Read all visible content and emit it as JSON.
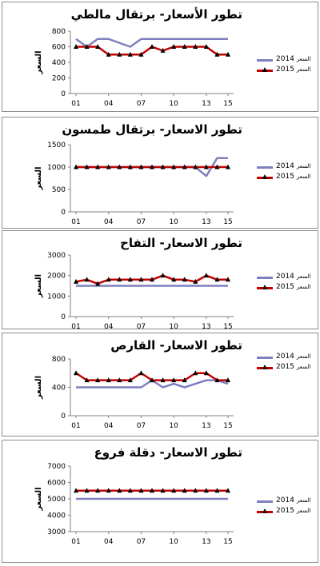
{
  "chart_data": [
    {
      "type": "line",
      "title": "تطور الأسعار- برتقال مالطي",
      "ylabel": "السعر",
      "x": [
        "01",
        "02",
        "03",
        "04",
        "05",
        "06",
        "07",
        "08",
        "09",
        "10",
        "11",
        "12",
        "13",
        "14",
        "15"
      ],
      "xticks": [
        "01",
        "04",
        "07",
        "10",
        "13",
        "15"
      ],
      "ylim": [
        0,
        800
      ],
      "yticks": [
        0,
        200,
        400,
        600,
        800
      ],
      "series": [
        {
          "name": "2014",
          "legend_unit": "السعر",
          "color": "#7f7fbf",
          "marker": "none",
          "values": [
            700,
            600,
            700,
            700,
            650,
            600,
            700,
            700,
            700,
            700,
            700,
            700,
            700,
            700,
            700
          ]
        },
        {
          "name": "2015",
          "legend_unit": "السعر",
          "color": "#c00000",
          "marker": "triangle",
          "values": [
            600,
            600,
            600,
            500,
            500,
            500,
            500,
            600,
            550,
            600,
            600,
            600,
            600,
            500,
            500
          ]
        }
      ]
    },
    {
      "type": "line",
      "title": "تطور الاسعار- برتقال طمسون",
      "ylabel": "السعر",
      "x": [
        "01",
        "02",
        "03",
        "04",
        "05",
        "06",
        "07",
        "08",
        "09",
        "10",
        "11",
        "12",
        "13",
        "14",
        "15"
      ],
      "xticks": [
        "01",
        "04",
        "07",
        "10",
        "13",
        "15"
      ],
      "ylim": [
        0,
        1500
      ],
      "yticks": [
        0,
        500,
        1000,
        1500
      ],
      "series": [
        {
          "name": "2014",
          "legend_unit": "السعر",
          "color": "#7f7fbf",
          "marker": "none",
          "values": [
            1000,
            1000,
            1000,
            1000,
            1000,
            1000,
            1000,
            1000,
            1000,
            1000,
            1000,
            1000,
            800,
            1200,
            1200
          ]
        },
        {
          "name": "2015",
          "legend_unit": "السعر",
          "color": "#c00000",
          "marker": "triangle",
          "values": [
            1000,
            1000,
            1000,
            1000,
            1000,
            1000,
            1000,
            1000,
            1000,
            1000,
            1000,
            1000,
            1000,
            1000,
            1000
          ]
        }
      ]
    },
    {
      "type": "line",
      "title": "تطور الاسعار- التفاح",
      "ylabel": "السعر",
      "x": [
        "01",
        "02",
        "03",
        "04",
        "05",
        "06",
        "07",
        "08",
        "09",
        "10",
        "11",
        "12",
        "13",
        "14",
        "15"
      ],
      "xticks": [
        "01",
        "04",
        "07",
        "10",
        "13",
        "15"
      ],
      "ylim": [
        0,
        3000
      ],
      "yticks": [
        0,
        1000,
        2000,
        3000
      ],
      "series": [
        {
          "name": "2014",
          "legend_unit": "السعر",
          "color": "#7f7fbf",
          "marker": "none",
          "values": [
            1500,
            1500,
            1500,
            1500,
            1500,
            1500,
            1500,
            1500,
            1500,
            1500,
            1500,
            1500,
            1500,
            1500,
            1500
          ]
        },
        {
          "name": "2015",
          "legend_unit": "السعر",
          "color": "#c00000",
          "marker": "triangle",
          "values": [
            1700,
            1800,
            1600,
            1800,
            1800,
            1800,
            1800,
            1800,
            2000,
            1800,
            1800,
            1700,
            2000,
            1800,
            1800
          ]
        }
      ]
    },
    {
      "type": "line",
      "title": "تطور الاسعار- القارص",
      "ylabel": "السعر",
      "x": [
        "01",
        "02",
        "03",
        "04",
        "05",
        "06",
        "07",
        "08",
        "09",
        "10",
        "11",
        "12",
        "13",
        "14",
        "15"
      ],
      "xticks": [
        "01",
        "04",
        "07",
        "10",
        "13",
        "15"
      ],
      "ylim": [
        0,
        800
      ],
      "yticks": [
        0,
        400,
        800
      ],
      "series": [
        {
          "name": "2014",
          "legend_unit": "السعر",
          "color": "#7f7fbf",
          "marker": "none",
          "values": [
            400,
            400,
            400,
            400,
            400,
            400,
            400,
            500,
            400,
            450,
            400,
            450,
            500,
            500,
            450
          ]
        },
        {
          "name": "2015",
          "legend_unit": "السعر",
          "color": "#c00000",
          "marker": "triangle",
          "values": [
            600,
            500,
            500,
            500,
            500,
            500,
            600,
            500,
            500,
            500,
            500,
            600,
            600,
            500,
            500
          ]
        }
      ]
    },
    {
      "type": "line",
      "title": "تطور الاسعار- دقلة فروع",
      "ylabel": "السعر",
      "x": [
        "01",
        "02",
        "03",
        "04",
        "05",
        "06",
        "07",
        "08",
        "09",
        "10",
        "11",
        "12",
        "13",
        "14",
        "15"
      ],
      "xticks": [
        "01",
        "04",
        "07",
        "10",
        "13",
        "15"
      ],
      "ylim": [
        3000,
        7000
      ],
      "yticks": [
        3000,
        4000,
        5000,
        6000,
        7000
      ],
      "series": [
        {
          "name": "2014",
          "legend_unit": "السعر",
          "color": "#7f7fbf",
          "marker": "none",
          "values": [
            5000,
            5000,
            5000,
            5000,
            5000,
            5000,
            5000,
            5000,
            5000,
            5000,
            5000,
            5000,
            5000,
            5000,
            5000
          ]
        },
        {
          "name": "2015",
          "legend_unit": "السعر",
          "color": "#c00000",
          "marker": "triangle",
          "values": [
            5500,
            5500,
            5500,
            5500,
            5500,
            5500,
            5500,
            5500,
            5500,
            5500,
            5500,
            5500,
            5500,
            5500,
            5500
          ]
        }
      ]
    }
  ]
}
